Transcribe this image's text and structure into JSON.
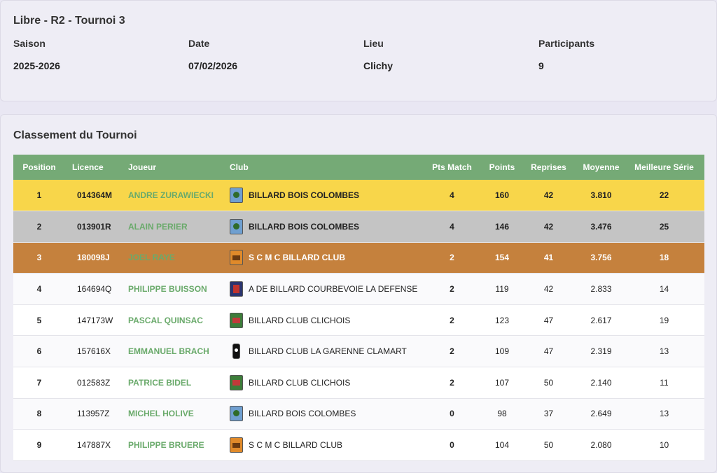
{
  "tournament": {
    "title": "Libre - R2 - Tournoi 3",
    "fields": [
      {
        "label": "Saison",
        "value": "2025-2026"
      },
      {
        "label": "Date",
        "value": "07/02/2026"
      },
      {
        "label": "Lieu",
        "value": "Clichy"
      },
      {
        "label": "Participants",
        "value": "9"
      }
    ]
  },
  "ranking": {
    "title": "Classement du Tournoi",
    "headers": [
      "Position",
      "Licence",
      "Joueur",
      "Club",
      "Pts Match",
      "Points",
      "Reprises",
      "Moyenne",
      "Meilleure Série"
    ],
    "rows": [
      {
        "position": "1",
        "licence": "014364M",
        "player": "ANDRE ZURAWIECKI",
        "club": "BILLARD BOIS COLOMBES",
        "club_logo": "bbc-logo",
        "pts_match": "4",
        "points": "160",
        "reprises": "42",
        "moyenne": "3.810",
        "meilleure_serie": "22"
      },
      {
        "position": "2",
        "licence": "013901R",
        "player": "ALAIN PERIER",
        "club": "BILLARD BOIS COLOMBES",
        "club_logo": "bbc-logo",
        "pts_match": "4",
        "points": "146",
        "reprises": "42",
        "moyenne": "3.476",
        "meilleure_serie": "25"
      },
      {
        "position": "3",
        "licence": "180098J",
        "player": "JOEL RAYE",
        "club": "S C M C BILLARD CLUB",
        "club_logo": "smc-logo",
        "pts_match": "2",
        "points": "154",
        "reprises": "41",
        "moyenne": "3.756",
        "meilleure_serie": "18"
      },
      {
        "position": "4",
        "licence": "164694Q",
        "player": "PHILIPPE BUISSON",
        "club": "A DE BILLARD COURBEVOIE LA DEFENSE",
        "club_logo": "cbd-logo",
        "pts_match": "2",
        "points": "119",
        "reprises": "42",
        "moyenne": "2.833",
        "meilleure_serie": "14"
      },
      {
        "position": "5",
        "licence": "147173W",
        "player": "PASCAL QUINSAC",
        "club": "BILLARD CLUB CLICHOIS",
        "club_logo": "bcc-logo",
        "pts_match": "2",
        "points": "123",
        "reprises": "47",
        "moyenne": "2.617",
        "meilleure_serie": "19"
      },
      {
        "position": "6",
        "licence": "157616X",
        "player": "EMMANUEL BRACH",
        "club": "BILLARD CLUB LA GARENNE CLAMART",
        "club_logo": "bgc-logo",
        "pts_match": "2",
        "points": "109",
        "reprises": "47",
        "moyenne": "2.319",
        "meilleure_serie": "13"
      },
      {
        "position": "7",
        "licence": "012583Z",
        "player": "PATRICE BIDEL",
        "club": "BILLARD CLUB CLICHOIS",
        "club_logo": "bcc-logo",
        "pts_match": "2",
        "points": "107",
        "reprises": "50",
        "moyenne": "2.140",
        "meilleure_serie": "11"
      },
      {
        "position": "8",
        "licence": "113957Z",
        "player": "MICHEL HOLIVE",
        "club": "BILLARD BOIS COLOMBES",
        "club_logo": "bbc-logo",
        "pts_match": "0",
        "points": "98",
        "reprises": "37",
        "moyenne": "2.649",
        "meilleure_serie": "13"
      },
      {
        "position": "9",
        "licence": "147887X",
        "player": "PHILIPPE BRUERE",
        "club": "S C M C BILLARD CLUB",
        "club_logo": "smc-logo",
        "pts_match": "0",
        "points": "104",
        "reprises": "50",
        "moyenne": "2.080",
        "meilleure_serie": "10"
      }
    ],
    "podium_colors": {
      "gold": "#f8d64a",
      "silver": "#c4c4c4",
      "bronze": "#c5813d"
    },
    "header_color": "#75aa76",
    "player_link_color": "#6aaa6b"
  }
}
